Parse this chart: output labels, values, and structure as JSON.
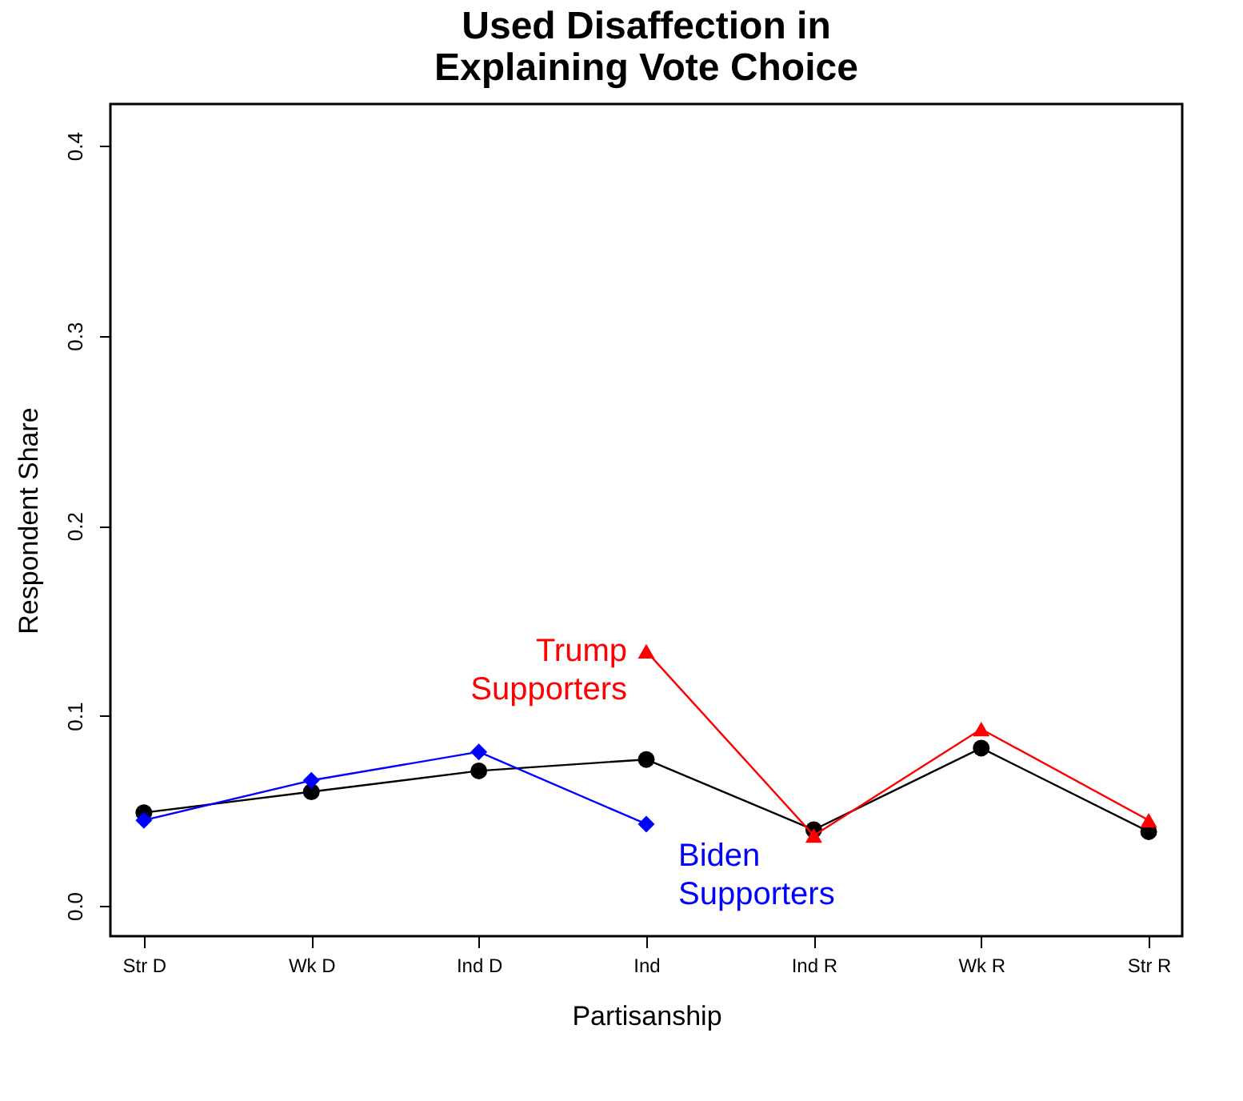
{
  "chart_data": {
    "type": "line",
    "title": "Used Disaffection in\nExplaining Vote Choice",
    "xlabel": "Partisanship",
    "ylabel": "Respondent Share",
    "categories": [
      "Str D",
      "Wk D",
      "Ind D",
      "Ind",
      "Ind R",
      "Wk R",
      "Str R"
    ],
    "ylim": [
      -0.016,
      0.422
    ],
    "yticks": [
      {
        "value": 0,
        "label": "0.0"
      },
      {
        "value": 0.1,
        "label": "0.1"
      },
      {
        "value": 0.2,
        "label": "0.2"
      },
      {
        "value": 0.3,
        "label": "0.3"
      },
      {
        "value": 0.4,
        "label": "0.4"
      }
    ],
    "grid": false,
    "series": [
      {
        "color": "#000000",
        "marker": "circle",
        "values": [
          0.049,
          0.06,
          0.071,
          0.077,
          0.04,
          0.083,
          0.039
        ]
      },
      {
        "name": "Biden Supporters",
        "color": "#0000ff",
        "marker": "diamond",
        "values": [
          0.045,
          0.066,
          0.081,
          0.043,
          null,
          null,
          null
        ]
      },
      {
        "name": "Trump Supporters",
        "color": "#ff0000",
        "marker": "triangle",
        "values": [
          null,
          null,
          null,
          0.134,
          0.037,
          0.093,
          0.045
        ]
      }
    ]
  }
}
